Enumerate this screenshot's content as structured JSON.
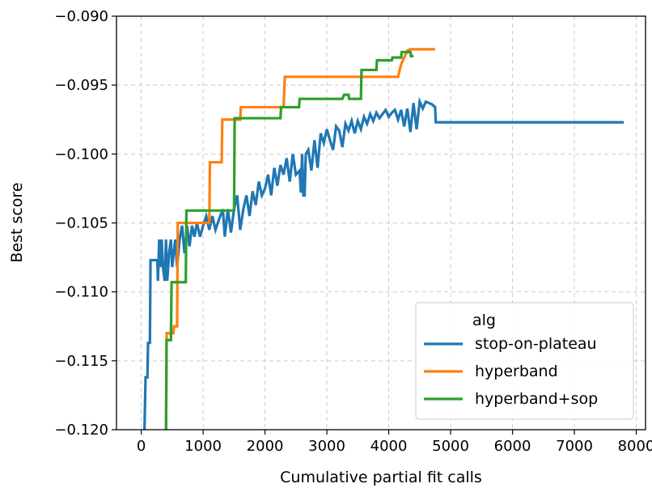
{
  "chart_data": {
    "type": "line",
    "title": "",
    "xlabel": "Cumulative partial fit calls",
    "ylabel": "Best score",
    "xlim": [
      -400,
      8150
    ],
    "ylim": [
      -0.12,
      -0.09
    ],
    "xticks": [
      0,
      1000,
      2000,
      3000,
      4000,
      5000,
      6000,
      7000,
      8000
    ],
    "xtick_labels": [
      "0",
      "1000",
      "2000",
      "3000",
      "4000",
      "5000",
      "6000",
      "7000",
      "8000"
    ],
    "yticks": [
      -0.12,
      -0.115,
      -0.11,
      -0.105,
      -0.1,
      -0.095,
      -0.09
    ],
    "ytick_labels": [
      "−0.120",
      "−0.115",
      "−0.110",
      "−0.105",
      "−0.100",
      "−0.095",
      "−0.090"
    ],
    "grid": true,
    "legend": {
      "title": "alg",
      "placement": "lower-right"
    },
    "series": [
      {
        "name": "stop-on-plateau",
        "color": "#1f77b4",
        "points": [
          [
            50,
            -0.1205
          ],
          [
            70,
            -0.1162
          ],
          [
            100,
            -0.1162
          ],
          [
            110,
            -0.1137
          ],
          [
            140,
            -0.1137
          ],
          [
            150,
            -0.1077
          ],
          [
            260,
            -0.1077
          ],
          [
            270,
            -0.1092
          ],
          [
            290,
            -0.1062
          ],
          [
            310,
            -0.1082
          ],
          [
            330,
            -0.1062
          ],
          [
            350,
            -0.1082
          ],
          [
            380,
            -0.1092
          ],
          [
            400,
            -0.1062
          ],
          [
            420,
            -0.1092
          ],
          [
            450,
            -0.1072
          ],
          [
            480,
            -0.1062
          ],
          [
            500,
            -0.1082
          ],
          [
            550,
            -0.1062
          ],
          [
            580,
            -0.1082
          ],
          [
            620,
            -0.1062
          ],
          [
            660,
            -0.1052
          ],
          [
            700,
            -0.1072
          ],
          [
            740,
            -0.1052
          ],
          [
            780,
            -0.1067
          ],
          [
            820,
            -0.1052
          ],
          [
            860,
            -0.106
          ],
          [
            900,
            -0.105
          ],
          [
            950,
            -0.106
          ],
          [
            1000,
            -0.1052
          ],
          [
            1050,
            -0.1045
          ],
          [
            1100,
            -0.1055
          ],
          [
            1150,
            -0.1045
          ],
          [
            1200,
            -0.1055
          ],
          [
            1260,
            -0.1047
          ],
          [
            1320,
            -0.104
          ],
          [
            1350,
            -0.106
          ],
          [
            1400,
            -0.104
          ],
          [
            1450,
            -0.1057
          ],
          [
            1500,
            -0.104
          ],
          [
            1550,
            -0.103
          ],
          [
            1600,
            -0.1055
          ],
          [
            1650,
            -0.104
          ],
          [
            1700,
            -0.103
          ],
          [
            1750,
            -0.1045
          ],
          [
            1800,
            -0.1027
          ],
          [
            1850,
            -0.1037
          ],
          [
            1900,
            -0.102
          ],
          [
            1950,
            -0.103
          ],
          [
            2000,
            -0.1025
          ],
          [
            2050,
            -0.1015
          ],
          [
            2100,
            -0.103
          ],
          [
            2150,
            -0.101
          ],
          [
            2200,
            -0.1023
          ],
          [
            2250,
            -0.1008
          ],
          [
            2300,
            -0.1015
          ],
          [
            2350,
            -0.1003
          ],
          [
            2400,
            -0.102
          ],
          [
            2450,
            -0.1
          ],
          [
            2500,
            -0.1015
          ],
          [
            2560,
            -0.1012
          ],
          [
            2580,
            -0.1028
          ],
          [
            2600,
            -0.1
          ],
          [
            2620,
            -0.103
          ],
          [
            2640,
            -0.103
          ],
          [
            2660,
            -0.1
          ],
          [
            2700,
            -0.0997
          ],
          [
            2750,
            -0.1012
          ],
          [
            2800,
            -0.099
          ],
          [
            2850,
            -0.101
          ],
          [
            2900,
            -0.0985
          ],
          [
            2950,
            -0.0992
          ],
          [
            3000,
            -0.0982
          ],
          [
            3050,
            -0.099
          ],
          [
            3100,
            -0.0997
          ],
          [
            3150,
            -0.098
          ],
          [
            3200,
            -0.0983
          ],
          [
            3250,
            -0.0995
          ],
          [
            3300,
            -0.0978
          ],
          [
            3350,
            -0.0983
          ],
          [
            3400,
            -0.0976
          ],
          [
            3450,
            -0.0985
          ],
          [
            3500,
            -0.0976
          ],
          [
            3550,
            -0.0982
          ],
          [
            3600,
            -0.0973
          ],
          [
            3650,
            -0.0978
          ],
          [
            3700,
            -0.0971
          ],
          [
            3750,
            -0.0976
          ],
          [
            3800,
            -0.097
          ],
          [
            3850,
            -0.0974
          ],
          [
            3900,
            -0.0971
          ],
          [
            3950,
            -0.0968
          ],
          [
            4000,
            -0.0973
          ],
          [
            4050,
            -0.097
          ],
          [
            4100,
            -0.0968
          ],
          [
            4150,
            -0.0975
          ],
          [
            4200,
            -0.0968
          ],
          [
            4250,
            -0.098
          ],
          [
            4300,
            -0.0967
          ],
          [
            4350,
            -0.0984
          ],
          [
            4400,
            -0.0963
          ],
          [
            4450,
            -0.0982
          ],
          [
            4500,
            -0.0962
          ],
          [
            4550,
            -0.0967
          ],
          [
            4600,
            -0.0962
          ],
          [
            4650,
            -0.0963
          ],
          [
            4700,
            -0.0964
          ],
          [
            4750,
            -0.0966
          ],
          [
            4760,
            -0.0977
          ],
          [
            7800,
            -0.0977
          ]
        ]
      },
      {
        "name": "hyperband",
        "color": "#ff7f0e",
        "points": [
          [
            400,
            -0.12
          ],
          [
            410,
            -0.113
          ],
          [
            520,
            -0.113
          ],
          [
            530,
            -0.1125
          ],
          [
            580,
            -0.1125
          ],
          [
            590,
            -0.105
          ],
          [
            1100,
            -0.105
          ],
          [
            1110,
            -0.1006
          ],
          [
            1300,
            -0.1006
          ],
          [
            1310,
            -0.0975
          ],
          [
            1600,
            -0.0975
          ],
          [
            1610,
            -0.0966
          ],
          [
            2300,
            -0.0966
          ],
          [
            2320,
            -0.0944
          ],
          [
            4150,
            -0.0944
          ],
          [
            4200,
            -0.0935
          ],
          [
            4300,
            -0.0925
          ],
          [
            4350,
            -0.0924
          ],
          [
            4750,
            -0.0924
          ]
        ]
      },
      {
        "name": "hyperband+sop",
        "color": "#2ca02c",
        "points": [
          [
            400,
            -0.121
          ],
          [
            410,
            -0.1135
          ],
          [
            480,
            -0.1135
          ],
          [
            490,
            -0.1093
          ],
          [
            720,
            -0.1093
          ],
          [
            730,
            -0.1041
          ],
          [
            1500,
            -0.1041
          ],
          [
            1510,
            -0.0974
          ],
          [
            2250,
            -0.0974
          ],
          [
            2260,
            -0.0966
          ],
          [
            2550,
            -0.0966
          ],
          [
            2560,
            -0.096
          ],
          [
            3250,
            -0.096
          ],
          [
            3280,
            -0.0957
          ],
          [
            3350,
            -0.0957
          ],
          [
            3360,
            -0.096
          ],
          [
            3550,
            -0.096
          ],
          [
            3560,
            -0.0939
          ],
          [
            3800,
            -0.0939
          ],
          [
            3810,
            -0.0932
          ],
          [
            4050,
            -0.0932
          ],
          [
            4060,
            -0.093
          ],
          [
            4200,
            -0.093
          ],
          [
            4210,
            -0.0926
          ],
          [
            4350,
            -0.0926
          ],
          [
            4360,
            -0.0929
          ],
          [
            4400,
            -0.0929
          ]
        ]
      }
    ]
  }
}
